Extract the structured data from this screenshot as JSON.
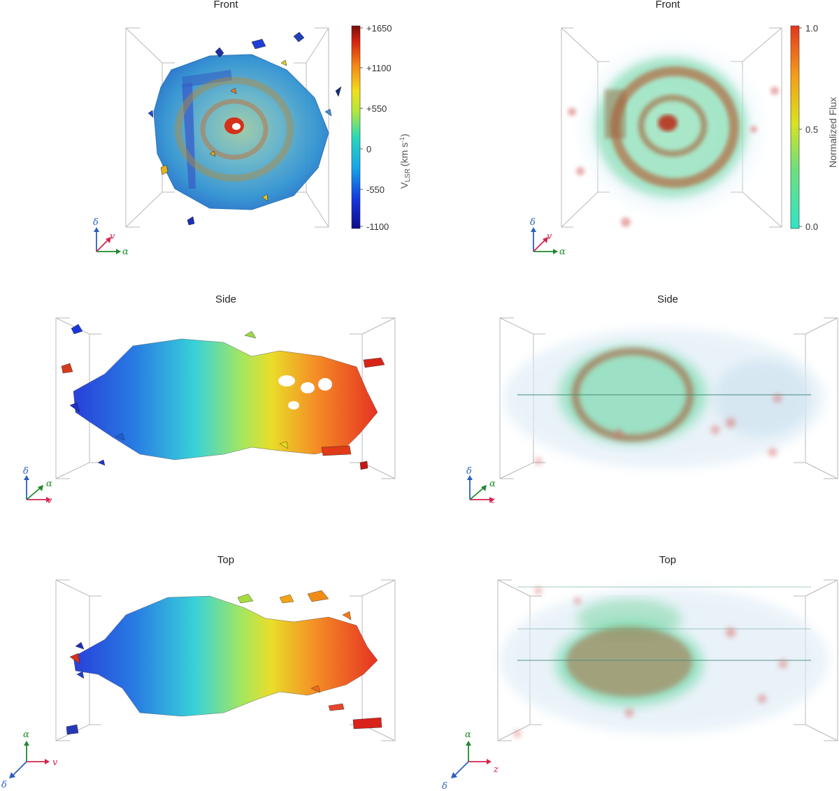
{
  "titles": {
    "front_left": "Front",
    "front_right": "Front",
    "side_left": "Side",
    "side_right": "Side",
    "top_left": "Top",
    "top_right": "Top"
  },
  "colorbar_velocity": {
    "title_main": "V",
    "title_sub": "LSR",
    "title_unit": "(km s",
    "title_exp": "-1",
    "title_close": ")",
    "ticks": [
      "+1650",
      "+1100",
      "+550",
      "0",
      "-550",
      "-1100"
    ]
  },
  "colorbar_flux": {
    "title": "Normalized Flux",
    "ticks": [
      "1.0",
      "0.5",
      "0.0"
    ]
  },
  "axes": {
    "delta": "δ",
    "nu": "v",
    "alpha": "α",
    "z": "z"
  },
  "colors": {
    "axis_blue": "#2a5fc1",
    "axis_red": "#d2264f",
    "axis_green": "#1f8a2c"
  }
}
